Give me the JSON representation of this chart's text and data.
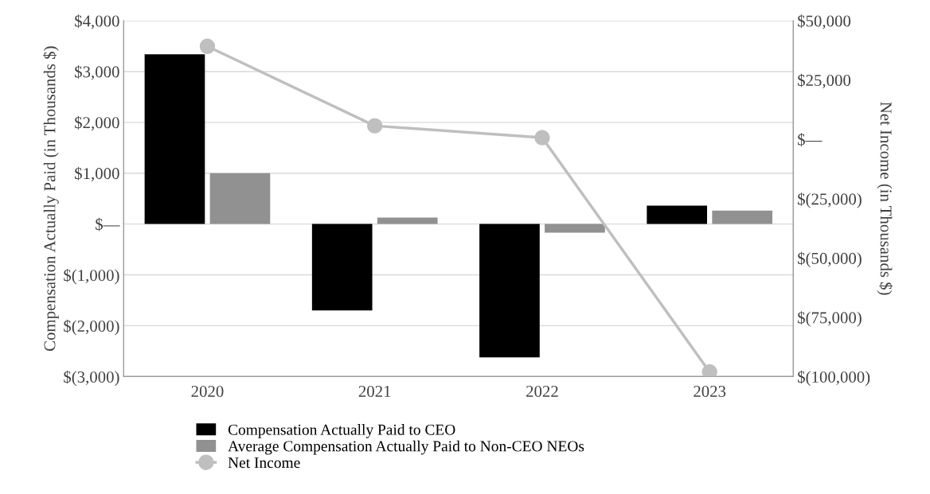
{
  "chart_data": {
    "type": "bar",
    "categories": [
      "2020",
      "2021",
      "2022",
      "2023"
    ],
    "ylabel": "Compensation Actually Paid (in Thousands $)",
    "y2label": "Net Income (in Thousands $)",
    "series": [
      {
        "name": "Compensation Actually Paid to CEO",
        "color": "#000000",
        "values": [
          3340,
          -1700,
          -2625,
          360
        ]
      },
      {
        "name": "Average Compensation Actually Paid to Non-CEO NEOs",
        "color": "#919191",
        "values": [
          1000,
          125,
          -170,
          265
        ]
      },
      {
        "name": "Net Income",
        "type": "line",
        "axis": "y2",
        "color": "#bfbfbf",
        "marker": "circle",
        "values": [
          39200,
          5700,
          700,
          -98100
        ]
      }
    ],
    "ylim": [
      -3000,
      4000
    ],
    "yticks": [
      {
        "value": -3000,
        "label": "$(3,000)"
      },
      {
        "value": -2000,
        "label": "$(2,000)"
      },
      {
        "value": -1000,
        "label": "$(1,000)"
      },
      {
        "value": 0,
        "label": "$—"
      },
      {
        "value": 1000,
        "label": "$1,000"
      },
      {
        "value": 2000,
        "label": "$2,000"
      },
      {
        "value": 3000,
        "label": "$3,000"
      },
      {
        "value": 4000,
        "label": "$4,000"
      }
    ],
    "y2lim": [
      -100000,
      50000
    ],
    "y2ticks": [
      {
        "value": -100000,
        "label": "$(100,000)"
      },
      {
        "value": -75000,
        "label": "$(75,000)"
      },
      {
        "value": -50000,
        "label": "$(50,000)"
      },
      {
        "value": -25000,
        "label": "$(25,000)"
      },
      {
        "value": 0,
        "label": "$—"
      },
      {
        "value": 25000,
        "label": "$25,000"
      },
      {
        "value": 50000,
        "label": "$50,000"
      }
    ],
    "grid": "y",
    "legend": "bottom"
  }
}
